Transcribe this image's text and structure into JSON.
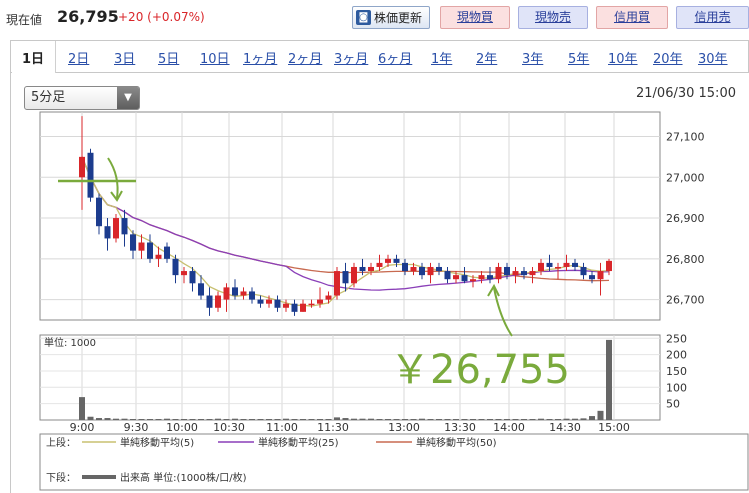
{
  "header": {
    "price_label": "現在値",
    "price_value": "26,795",
    "price_change": "+20 (+0.07%)",
    "refresh_button": "株価更新",
    "buy_spot": "現物買",
    "sell_spot": "現物売",
    "buy_margin": "信用買",
    "sell_margin": "信用売"
  },
  "tabs": [
    "1日",
    "2日",
    "3日",
    "5日",
    "10日",
    "1ヶ月",
    "2ヶ月",
    "3ヶ月",
    "6ヶ月",
    "1年",
    "2年",
    "3年",
    "5年",
    "10年",
    "20年",
    "30年"
  ],
  "controls": {
    "interval": "5分足",
    "datetime": "21/06/30 15:00"
  },
  "annotation": "￥26,755",
  "legend": {
    "upper_label": "上段：",
    "lower_label": "下段：",
    "ma5": "単純移動平均(5)",
    "ma25": "単純移動平均(25)",
    "ma50": "単純移動平均(50)",
    "volume": "出来高 単位:(1000株/口/枚)"
  },
  "colors": {
    "up": "#d9262a",
    "down": "#1c3c8e",
    "ma5": "#c8c070",
    "ma25": "#8a3fb8",
    "ma50": "#c86a50",
    "volume": "#666666",
    "annotation": "#7aaa3c"
  },
  "chart_data": [
    {
      "type": "candlestick",
      "x_ticks": [
        "9:00",
        "9:30",
        "10:00",
        "10:30",
        "11:00",
        "11:30",
        "13:00",
        "13:30",
        "14:00",
        "14:30",
        "15:00"
      ],
      "y_ticks": [
        "26,700",
        "26,800",
        "26,900",
        "27,000",
        "27,100"
      ],
      "ylim": [
        26650,
        27160
      ],
      "series": [
        {
          "name": "単純移動平均(5)"
        },
        {
          "name": "単純移動平均(25)"
        },
        {
          "name": "単純移動平均(50)"
        }
      ],
      "candles": [
        {
          "o": 27000,
          "h": 27150,
          "l": 26920,
          "c": 27050
        },
        {
          "o": 27060,
          "h": 27070,
          "l": 26940,
          "c": 26950
        },
        {
          "o": 26950,
          "h": 26960,
          "l": 26860,
          "c": 26880
        },
        {
          "o": 26880,
          "h": 26900,
          "l": 26820,
          "c": 26850
        },
        {
          "o": 26850,
          "h": 26910,
          "l": 26840,
          "c": 26900
        },
        {
          "o": 26900,
          "h": 26920,
          "l": 26830,
          "c": 26860
        },
        {
          "o": 26860,
          "h": 26870,
          "l": 26800,
          "c": 26820
        },
        {
          "o": 26820,
          "h": 26860,
          "l": 26800,
          "c": 26840
        },
        {
          "o": 26840,
          "h": 26860,
          "l": 26790,
          "c": 26800
        },
        {
          "o": 26800,
          "h": 26830,
          "l": 26780,
          "c": 26810
        },
        {
          "o": 26830,
          "h": 26840,
          "l": 26790,
          "c": 26800
        },
        {
          "o": 26800,
          "h": 26810,
          "l": 26740,
          "c": 26760
        },
        {
          "o": 26760,
          "h": 26780,
          "l": 26740,
          "c": 26770
        },
        {
          "o": 26770,
          "h": 26780,
          "l": 26720,
          "c": 26740
        },
        {
          "o": 26740,
          "h": 26760,
          "l": 26700,
          "c": 26710
        },
        {
          "o": 26710,
          "h": 26730,
          "l": 26660,
          "c": 26680
        },
        {
          "o": 26680,
          "h": 26720,
          "l": 26670,
          "c": 26710
        },
        {
          "o": 26700,
          "h": 26740,
          "l": 26670,
          "c": 26730
        },
        {
          "o": 26730,
          "h": 26750,
          "l": 26700,
          "c": 26710
        },
        {
          "o": 26710,
          "h": 26730,
          "l": 26700,
          "c": 26720
        },
        {
          "o": 26720,
          "h": 26730,
          "l": 26690,
          "c": 26700
        },
        {
          "o": 26700,
          "h": 26710,
          "l": 26680,
          "c": 26690
        },
        {
          "o": 26690,
          "h": 26710,
          "l": 26680,
          "c": 26700
        },
        {
          "o": 26700,
          "h": 26710,
          "l": 26670,
          "c": 26680
        },
        {
          "o": 26680,
          "h": 26700,
          "l": 26670,
          "c": 26690
        },
        {
          "o": 26690,
          "h": 26700,
          "l": 26660,
          "c": 26670
        },
        {
          "o": 26670,
          "h": 26700,
          "l": 26670,
          "c": 26690
        },
        {
          "o": 26690,
          "h": 26700,
          "l": 26680,
          "c": 26690
        },
        {
          "o": 26690,
          "h": 26730,
          "l": 26680,
          "c": 26700
        },
        {
          "o": 26700,
          "h": 26720,
          "l": 26690,
          "c": 26710
        },
        {
          "o": 26710,
          "h": 26780,
          "l": 26700,
          "c": 26770
        },
        {
          "o": 26770,
          "h": 26790,
          "l": 26720,
          "c": 26740
        },
        {
          "o": 26740,
          "h": 26790,
          "l": 26730,
          "c": 26780
        },
        {
          "o": 26780,
          "h": 26800,
          "l": 26760,
          "c": 26770
        },
        {
          "o": 26770,
          "h": 26790,
          "l": 26760,
          "c": 26780
        },
        {
          "o": 26780,
          "h": 26810,
          "l": 26770,
          "c": 26790
        },
        {
          "o": 26790,
          "h": 26810,
          "l": 26780,
          "c": 26800
        },
        {
          "o": 26800,
          "h": 26810,
          "l": 26780,
          "c": 26790
        },
        {
          "o": 26790,
          "h": 26800,
          "l": 26760,
          "c": 26770
        },
        {
          "o": 26770,
          "h": 26790,
          "l": 26760,
          "c": 26780
        },
        {
          "o": 26780,
          "h": 26790,
          "l": 26750,
          "c": 26760
        },
        {
          "o": 26760,
          "h": 26790,
          "l": 26740,
          "c": 26780
        },
        {
          "o": 26780,
          "h": 26790,
          "l": 26760,
          "c": 26770
        },
        {
          "o": 26770,
          "h": 26780,
          "l": 26740,
          "c": 26750
        },
        {
          "o": 26750,
          "h": 26770,
          "l": 26740,
          "c": 26760
        },
        {
          "o": 26760,
          "h": 26780,
          "l": 26740,
          "c": 26745
        },
        {
          "o": 26745,
          "h": 26760,
          "l": 26730,
          "c": 26750
        },
        {
          "o": 26750,
          "h": 26770,
          "l": 26740,
          "c": 26760
        },
        {
          "o": 26760,
          "h": 26780,
          "l": 26740,
          "c": 26750
        },
        {
          "o": 26750,
          "h": 26790,
          "l": 26740,
          "c": 26780
        },
        {
          "o": 26780,
          "h": 26790,
          "l": 26750,
          "c": 26760
        },
        {
          "o": 26760,
          "h": 26780,
          "l": 26740,
          "c": 26770
        },
        {
          "o": 26770,
          "h": 26780,
          "l": 26750,
          "c": 26760
        },
        {
          "o": 26760,
          "h": 26780,
          "l": 26740,
          "c": 26770
        },
        {
          "o": 26770,
          "h": 26800,
          "l": 26760,
          "c": 26790
        },
        {
          "o": 26790,
          "h": 26810,
          "l": 26770,
          "c": 26780
        },
        {
          "o": 26780,
          "h": 26790,
          "l": 26750,
          "c": 26780
        },
        {
          "o": 26780,
          "h": 26810,
          "l": 26770,
          "c": 26790
        },
        {
          "o": 26790,
          "h": 26800,
          "l": 26770,
          "c": 26780
        },
        {
          "o": 26780,
          "h": 26790,
          "l": 26750,
          "c": 26760
        },
        {
          "o": 26760,
          "h": 26770,
          "l": 26740,
          "c": 26750
        },
        {
          "o": 26750,
          "h": 26790,
          "l": 26710,
          "c": 26770
        },
        {
          "o": 26770,
          "h": 26800,
          "l": 26760,
          "c": 26795
        }
      ]
    },
    {
      "type": "bar",
      "title": "単位: 1000",
      "y_ticks": [
        "50",
        "100",
        "150",
        "200",
        "250"
      ],
      "ylim": [
        0,
        260
      ],
      "values": [
        70,
        10,
        6,
        6,
        4,
        4,
        3,
        3,
        3,
        3,
        4,
        3,
        3,
        3,
        3,
        3,
        4,
        3,
        4,
        3,
        3,
        3,
        3,
        3,
        4,
        3,
        3,
        3,
        3,
        3,
        8,
        6,
        4,
        4,
        4,
        3,
        3,
        3,
        3,
        3,
        4,
        3,
        3,
        3,
        3,
        3,
        3,
        3,
        3,
        3,
        3,
        3,
        3,
        3,
        4,
        3,
        3,
        4,
        4,
        5,
        12,
        28,
        245
      ]
    }
  ]
}
